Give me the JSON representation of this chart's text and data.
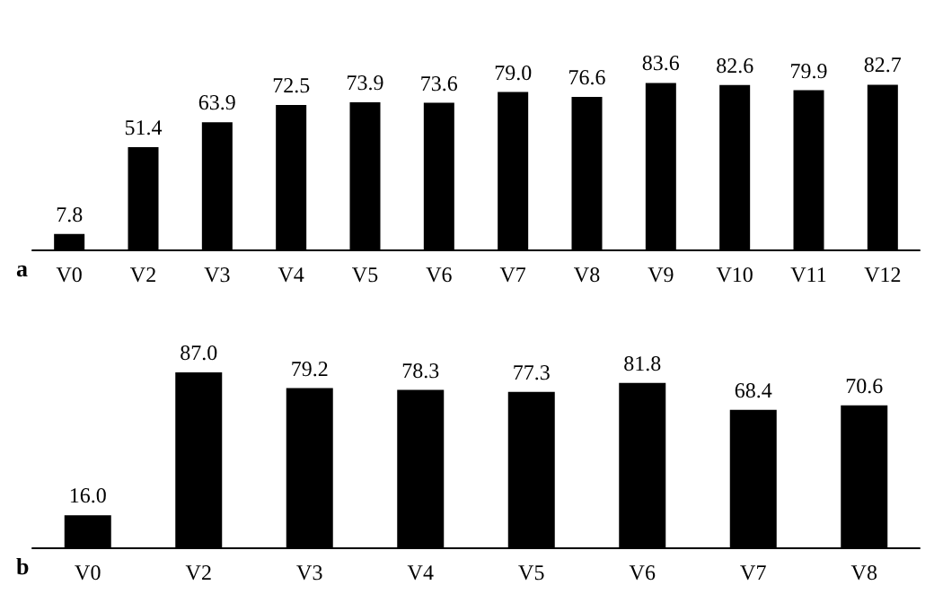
{
  "chart_data": [
    {
      "type": "bar",
      "title": "a",
      "categories": [
        "V0",
        "V2",
        "V3",
        "V4",
        "V5",
        "V6",
        "V7",
        "V8",
        "V9",
        "V10",
        "V11",
        "V12"
      ],
      "values": [
        7.8,
        51.4,
        63.9,
        72.5,
        73.9,
        73.6,
        79.0,
        76.6,
        83.6,
        82.6,
        79.9,
        82.7
      ],
      "value_labels": [
        "7.8",
        "51.4",
        "63.9",
        "72.5",
        "73.9",
        "73.6",
        "79.0",
        "76.6",
        "83.6",
        "82.6",
        "79.9",
        "82.7"
      ],
      "color": "#000000"
    },
    {
      "type": "bar",
      "title": "b",
      "categories": [
        "V0",
        "V2",
        "V3",
        "V4",
        "V5",
        "V6",
        "V7",
        "V8"
      ],
      "values": [
        16.0,
        87.0,
        79.2,
        78.3,
        77.3,
        81.8,
        68.4,
        70.6
      ],
      "value_labels": [
        "16.0",
        "87.0",
        "79.2",
        "78.3",
        "77.3",
        "81.8",
        "68.4",
        "70.6"
      ],
      "color": "#000000"
    }
  ]
}
